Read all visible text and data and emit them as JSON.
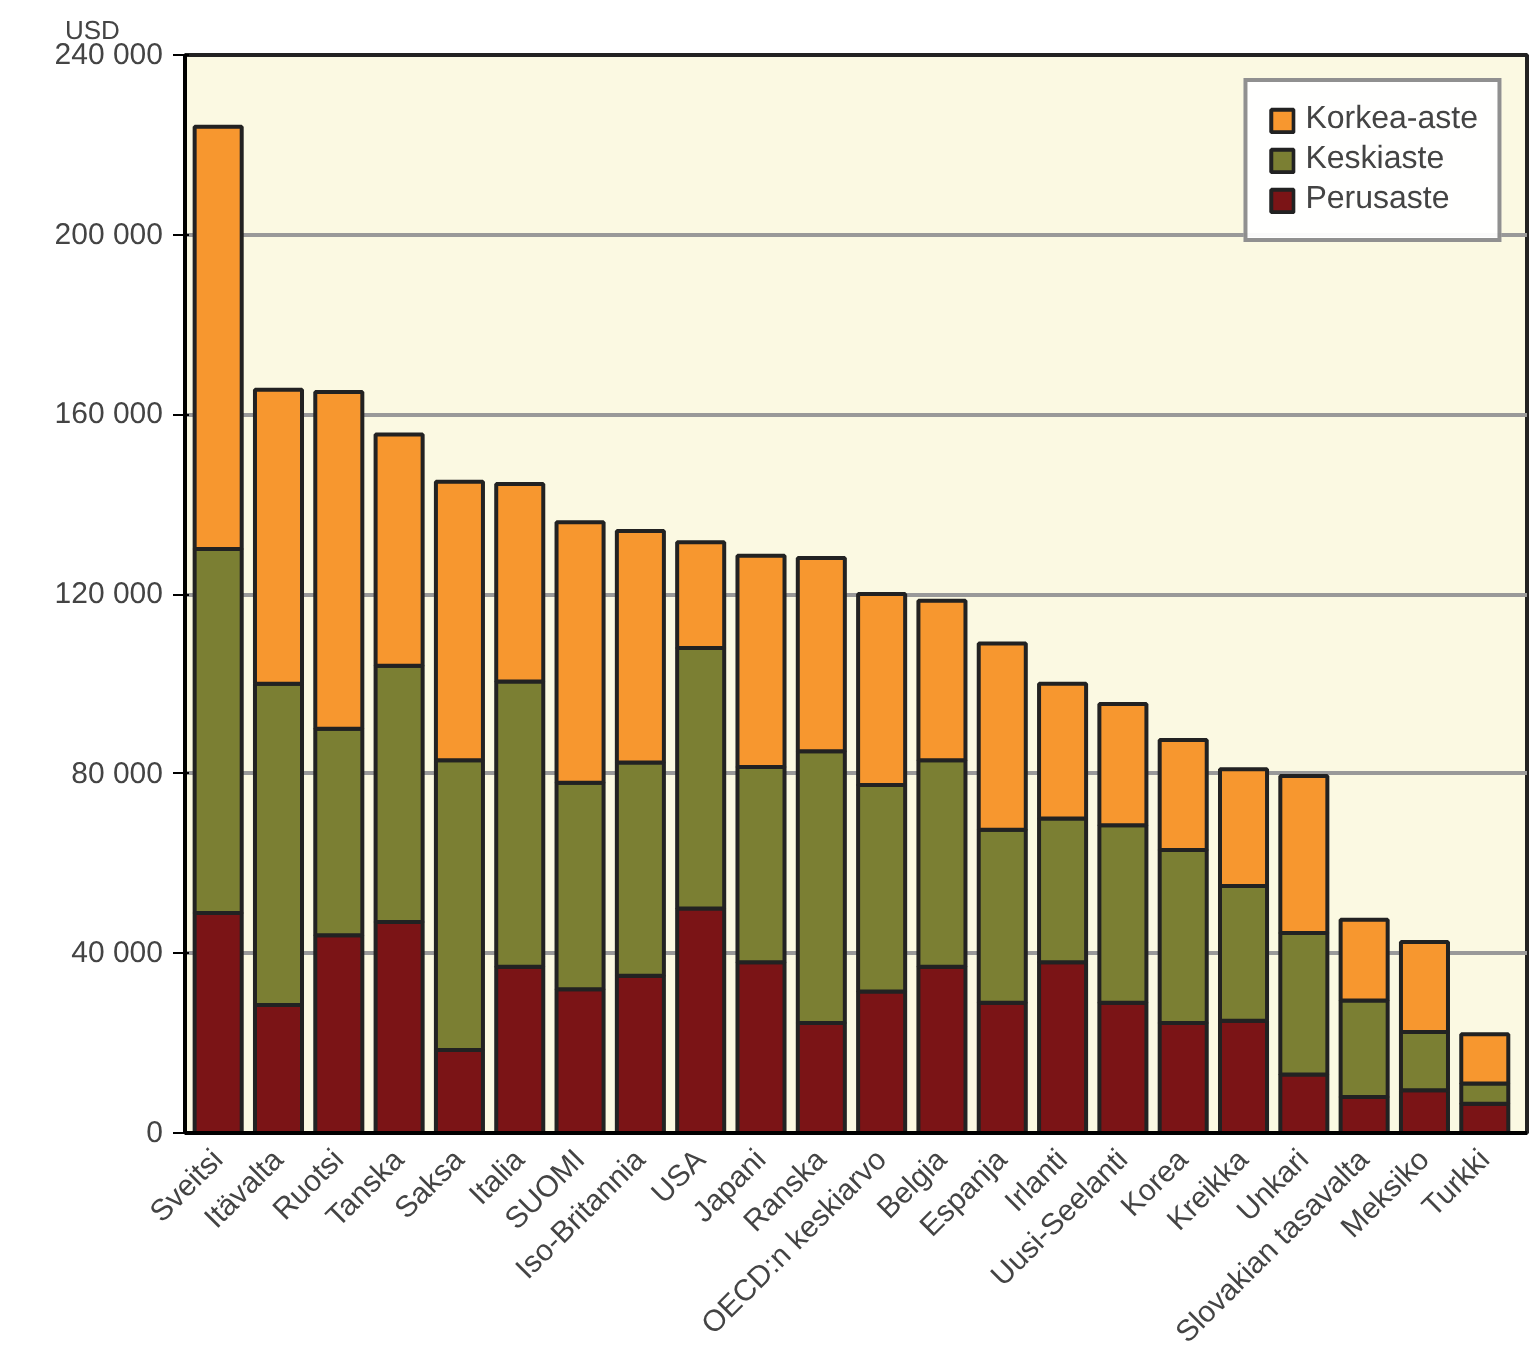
{
  "chart_data": {
    "type": "bar",
    "stacked": true,
    "ylabel": "USD",
    "categories": [
      "Sveitsi",
      "Itävalta",
      "Ruotsi",
      "Tanska",
      "Saksa",
      "Italia",
      "SUOMI",
      "Iso-Britannia",
      "USA",
      "Japani",
      "Ranska",
      "OECD:n keskiarvo",
      "Belgia",
      "Espanja",
      "Irlanti",
      "Uusi-Seelanti",
      "Korea",
      "Kreikka",
      "Unkari",
      "Slovakian tasavalta",
      "Meksiko",
      "Turkki"
    ],
    "series": [
      {
        "name": "Perusaste",
        "color": "#7b1416",
        "values": [
          49000,
          28500,
          44000,
          47000,
          18500,
          37000,
          32000,
          35000,
          50000,
          38000,
          24500,
          31500,
          37000,
          29000,
          38000,
          29000,
          24500,
          25000,
          13000,
          8000,
          9500,
          6500
        ]
      },
      {
        "name": "Keskiaste",
        "color": "#7b7f33",
        "values": [
          81000,
          71500,
          46000,
          57000,
          64500,
          63500,
          46000,
          47500,
          58000,
          43500,
          60500,
          46000,
          46000,
          38500,
          32000,
          39500,
          38500,
          30000,
          31500,
          21500,
          13000,
          4500
        ]
      },
      {
        "name": "Korkea-aste",
        "color": "#f7972f",
        "values": [
          94000,
          65500,
          75000,
          51500,
          62000,
          44000,
          58000,
          51500,
          23500,
          47000,
          43000,
          42500,
          35500,
          41500,
          30000,
          27000,
          24500,
          26000,
          35000,
          18000,
          20000,
          11000
        ]
      }
    ],
    "ylim": [
      0,
      240000
    ],
    "yticks": [
      {
        "value": 0,
        "label": "0"
      },
      {
        "value": 40000,
        "label": "40 000"
      },
      {
        "value": 80000,
        "label": "80 000"
      },
      {
        "value": 120000,
        "label": "120 000"
      },
      {
        "value": 160000,
        "label": "160 000"
      },
      {
        "value": 200000,
        "label": "200 000"
      },
      {
        "value": 240000,
        "label": "240 000"
      }
    ],
    "grid": "y",
    "legend": "top right"
  }
}
